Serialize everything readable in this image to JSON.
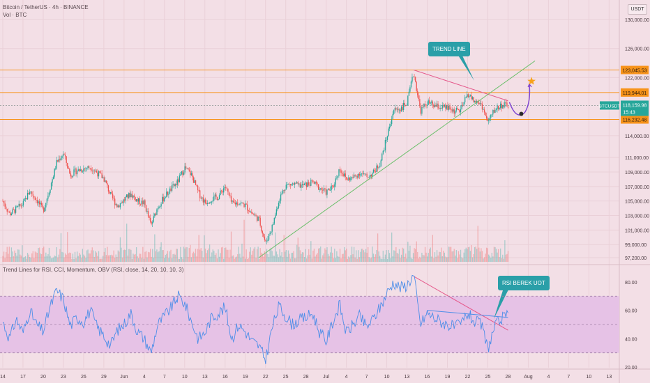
{
  "header": {
    "title": "Bitcoin / TetherUS · 4h · BINANCE",
    "volume_label": "Vol · BTC"
  },
  "unit_label": "USDT",
  "indicator_title": "Trend Lines for RSI, CCI, Momentum, OBV (RSI, close, 14, 20, 10, 10, 3)",
  "callouts": {
    "trend_line": "TREND LINE",
    "rsi": "RSI BEREK UOT"
  },
  "colors": {
    "background": "#f3dfe6",
    "up": "#26a69a",
    "down": "#ef5350",
    "level": "#f7931a",
    "trend_red": "#e55a8c",
    "trend_green": "#6cbf6c",
    "rsi_line": "#4d8ee8",
    "rsi_band": "#e6c2e6",
    "callout": "#2a9fa8",
    "projection": "#7a3fd1",
    "star": "#f7a21a"
  },
  "chart_data": [
    {
      "type": "candlestick",
      "title": "Bitcoin / TetherUS · 4h · BINANCE",
      "price_axis_ticks": [
        "130,000.00",
        "126,000.00",
        "122,000.00",
        "114,000.00",
        "111,000.00",
        "109,000.00",
        "107,000.00",
        "105,000.00",
        "103,000.00",
        "101,000.00",
        "99,000.00",
        "97,200.00"
      ],
      "price_tick_values": [
        130000,
        126000,
        122000,
        114000,
        111000,
        109000,
        107000,
        105000,
        103000,
        101000,
        99000,
        97200
      ],
      "x_ticks": [
        "14",
        "17",
        "20",
        "23",
        "26",
        "29",
        "Jun",
        "4",
        "7",
        "10",
        "13",
        "16",
        "19",
        "22",
        "25",
        "28",
        "Jul",
        "4",
        "7",
        "10",
        "13",
        "16",
        "19",
        "22",
        "25",
        "28",
        "Aug",
        "4",
        "7",
        "10",
        "13"
      ],
      "levels": [
        {
          "label": "123,045.53",
          "value": 123045.53
        },
        {
          "label": "119,944.01",
          "value": 119944.01
        },
        {
          "label": "116,232.48",
          "value": 116232.48
        }
      ],
      "current_price": {
        "symbol": "BTCUSDT",
        "price": "118,159.98",
        "countdown": "15:43",
        "value": 118159.98
      },
      "trend_lines": [
        {
          "name": "descending",
          "from": [
            "Jul 14",
            123045
          ],
          "to": [
            "Jul 28",
            118800
          ]
        },
        {
          "name": "ascending",
          "from": [
            "Jun 21",
            97200
          ],
          "to": [
            "Aug 1",
            124300
          ]
        }
      ],
      "projection_target": 121500,
      "projection_low": 117200,
      "close_path": [
        [
          "May 14",
          105000
        ],
        [
          "May 15",
          103200
        ],
        [
          "May 17",
          104600
        ],
        [
          "May 18",
          106400
        ],
        [
          "May 19",
          105200
        ],
        [
          "May 20",
          103700
        ],
        [
          "May 21",
          106800
        ],
        [
          "May 22",
          110300
        ],
        [
          "May 23",
          111600
        ],
        [
          "May 24",
          108600
        ],
        [
          "May 25",
          109200
        ],
        [
          "May 27",
          109700
        ],
        [
          "May 29",
          108100
        ],
        [
          "May 30",
          105800
        ],
        [
          "May 31",
          104300
        ],
        [
          "Jun 2",
          106000
        ],
        [
          "Jun 3",
          105000
        ],
        [
          "Jun 4",
          104700
        ],
        [
          "Jun 5",
          101600
        ],
        [
          "Jun 6",
          104200
        ],
        [
          "Jun 7",
          105600
        ],
        [
          "Jun 9",
          107700
        ],
        [
          "Jun 10",
          109600
        ],
        [
          "Jun 11",
          108600
        ],
        [
          "Jun 12",
          106200
        ],
        [
          "Jun 13",
          104800
        ],
        [
          "Jun 14",
          105300
        ],
        [
          "Jun 15",
          105600
        ],
        [
          "Jun 16",
          107100
        ],
        [
          "Jun 17",
          104600
        ],
        [
          "Jun 18",
          104800
        ],
        [
          "Jun 19",
          104400
        ],
        [
          "Jun 20",
          103300
        ],
        [
          "Jun 21",
          102500
        ],
        [
          "Jun 22",
          99200
        ],
        [
          "Jun 23",
          101500
        ],
        [
          "Jun 24",
          105200
        ],
        [
          "Jun 25",
          107200
        ],
        [
          "Jun 26",
          107300
        ],
        [
          "Jun 27",
          107100
        ],
        [
          "Jun 28",
          107200
        ],
        [
          "Jun 29",
          107600
        ],
        [
          "Jun 30",
          106800
        ],
        [
          "Jul 1",
          106200
        ],
        [
          "Jul 2",
          106900
        ],
        [
          "Jul 3",
          109500
        ],
        [
          "Jul 4",
          108000
        ],
        [
          "Jul 5",
          108200
        ],
        [
          "Jul 6",
          108900
        ],
        [
          "Jul 7",
          108300
        ],
        [
          "Jul 8",
          108900
        ],
        [
          "Jul 9",
          110200
        ],
        [
          "Jul 10",
          113800
        ],
        [
          "Jul 11",
          117500
        ],
        [
          "Jul 12",
          117700
        ],
        [
          "Jul 13",
          118500
        ],
        [
          "Jul 14",
          122700
        ],
        [
          "Jul 15",
          117400
        ],
        [
          "Jul 16",
          118600
        ],
        [
          "Jul 17",
          118100
        ],
        [
          "Jul 18",
          117900
        ],
        [
          "Jul 19",
          117800
        ],
        [
          "Jul 20",
          117400
        ],
        [
          "Jul 21",
          117500
        ],
        [
          "Jul 22",
          119800
        ],
        [
          "Jul 23",
          118700
        ],
        [
          "Jul 24",
          118400
        ],
        [
          "Jul 25",
          115800
        ],
        [
          "Jul 26",
          117600
        ],
        [
          "Jul 27",
          118200
        ],
        [
          "Jul 28",
          118160
        ]
      ]
    },
    {
      "type": "line",
      "title": "Trend Lines for RSI, CCI, Momentum, OBV (RSI, close, 14, 20, 10, 10, 3)",
      "y_ticks": [
        "80.00",
        "60.00",
        "40.00",
        "20.00"
      ],
      "y_tick_values": [
        80,
        60,
        40,
        20
      ],
      "band": [
        30,
        70
      ],
      "rsi_path": [
        [
          "May 14",
          52
        ],
        [
          "May 15",
          40
        ],
        [
          "May 16",
          54
        ],
        [
          "May 17",
          44
        ],
        [
          "May 18",
          60
        ],
        [
          "May 19",
          50
        ],
        [
          "May 20",
          45
        ],
        [
          "May 21",
          62
        ],
        [
          "May 22",
          74
        ],
        [
          "May 23",
          68
        ],
        [
          "May 24",
          49
        ],
        [
          "May 25",
          55
        ],
        [
          "May 26",
          52
        ],
        [
          "May 27",
          60
        ],
        [
          "May 28",
          48
        ],
        [
          "May 29",
          42
        ],
        [
          "May 30",
          35
        ],
        [
          "May 31",
          46
        ],
        [
          "Jun 1",
          50
        ],
        [
          "Jun 2",
          58
        ],
        [
          "Jun 3",
          45
        ],
        [
          "Jun 4",
          40
        ],
        [
          "Jun 5",
          30
        ],
        [
          "Jun 6",
          50
        ],
        [
          "Jun 7",
          56
        ],
        [
          "Jun 8",
          62
        ],
        [
          "Jun 9",
          70
        ],
        [
          "Jun 10",
          65
        ],
        [
          "Jun 11",
          52
        ],
        [
          "Jun 12",
          40
        ],
        [
          "Jun 13",
          44
        ],
        [
          "Jun 14",
          55
        ],
        [
          "Jun 15",
          58
        ],
        [
          "Jun 16",
          62
        ],
        [
          "Jun 17",
          40
        ],
        [
          "Jun 18",
          50
        ],
        [
          "Jun 19",
          45
        ],
        [
          "Jun 20",
          38
        ],
        [
          "Jun 21",
          35
        ],
        [
          "Jun 22",
          25
        ],
        [
          "Jun 23",
          48
        ],
        [
          "Jun 24",
          63
        ],
        [
          "Jun 25",
          56
        ],
        [
          "Jun 26",
          50
        ],
        [
          "Jun 27",
          53
        ],
        [
          "Jun 28",
          55
        ],
        [
          "Jun 29",
          58
        ],
        [
          "Jun 30",
          45
        ],
        [
          "Jul 1",
          38
        ],
        [
          "Jul 2",
          52
        ],
        [
          "Jul 3",
          64
        ],
        [
          "Jul 4",
          44
        ],
        [
          "Jul 5",
          50
        ],
        [
          "Jul 6",
          56
        ],
        [
          "Jul 7",
          48
        ],
        [
          "Jul 8",
          54
        ],
        [
          "Jul 9",
          62
        ],
        [
          "Jul 10",
          72
        ],
        [
          "Jul 11",
          80
        ],
        [
          "Jul 12",
          76
        ],
        [
          "Jul 13",
          78
        ],
        [
          "Jul 14",
          85
        ],
        [
          "Jul 15",
          50
        ],
        [
          "Jul 16",
          58
        ],
        [
          "Jul 17",
          55
        ],
        [
          "Jul 18",
          52
        ],
        [
          "Jul 19",
          50
        ],
        [
          "Jul 20",
          48
        ],
        [
          "Jul 21",
          50
        ],
        [
          "Jul 22",
          58
        ],
        [
          "Jul 23",
          52
        ],
        [
          "Jul 24",
          50
        ],
        [
          "Jul 25",
          33
        ],
        [
          "Jul 26",
          48
        ],
        [
          "Jul 27",
          54
        ],
        [
          "Jul 28",
          56
        ]
      ],
      "trend_lines": [
        {
          "name": "rsi-descending",
          "from": [
            "Jul 14",
            84
          ],
          "to": [
            "Jul 28",
            46
          ]
        },
        {
          "name": "rsi-flat",
          "from": [
            "Jul 16",
            60
          ],
          "to": [
            "Jul 28",
            55
          ]
        }
      ]
    }
  ]
}
